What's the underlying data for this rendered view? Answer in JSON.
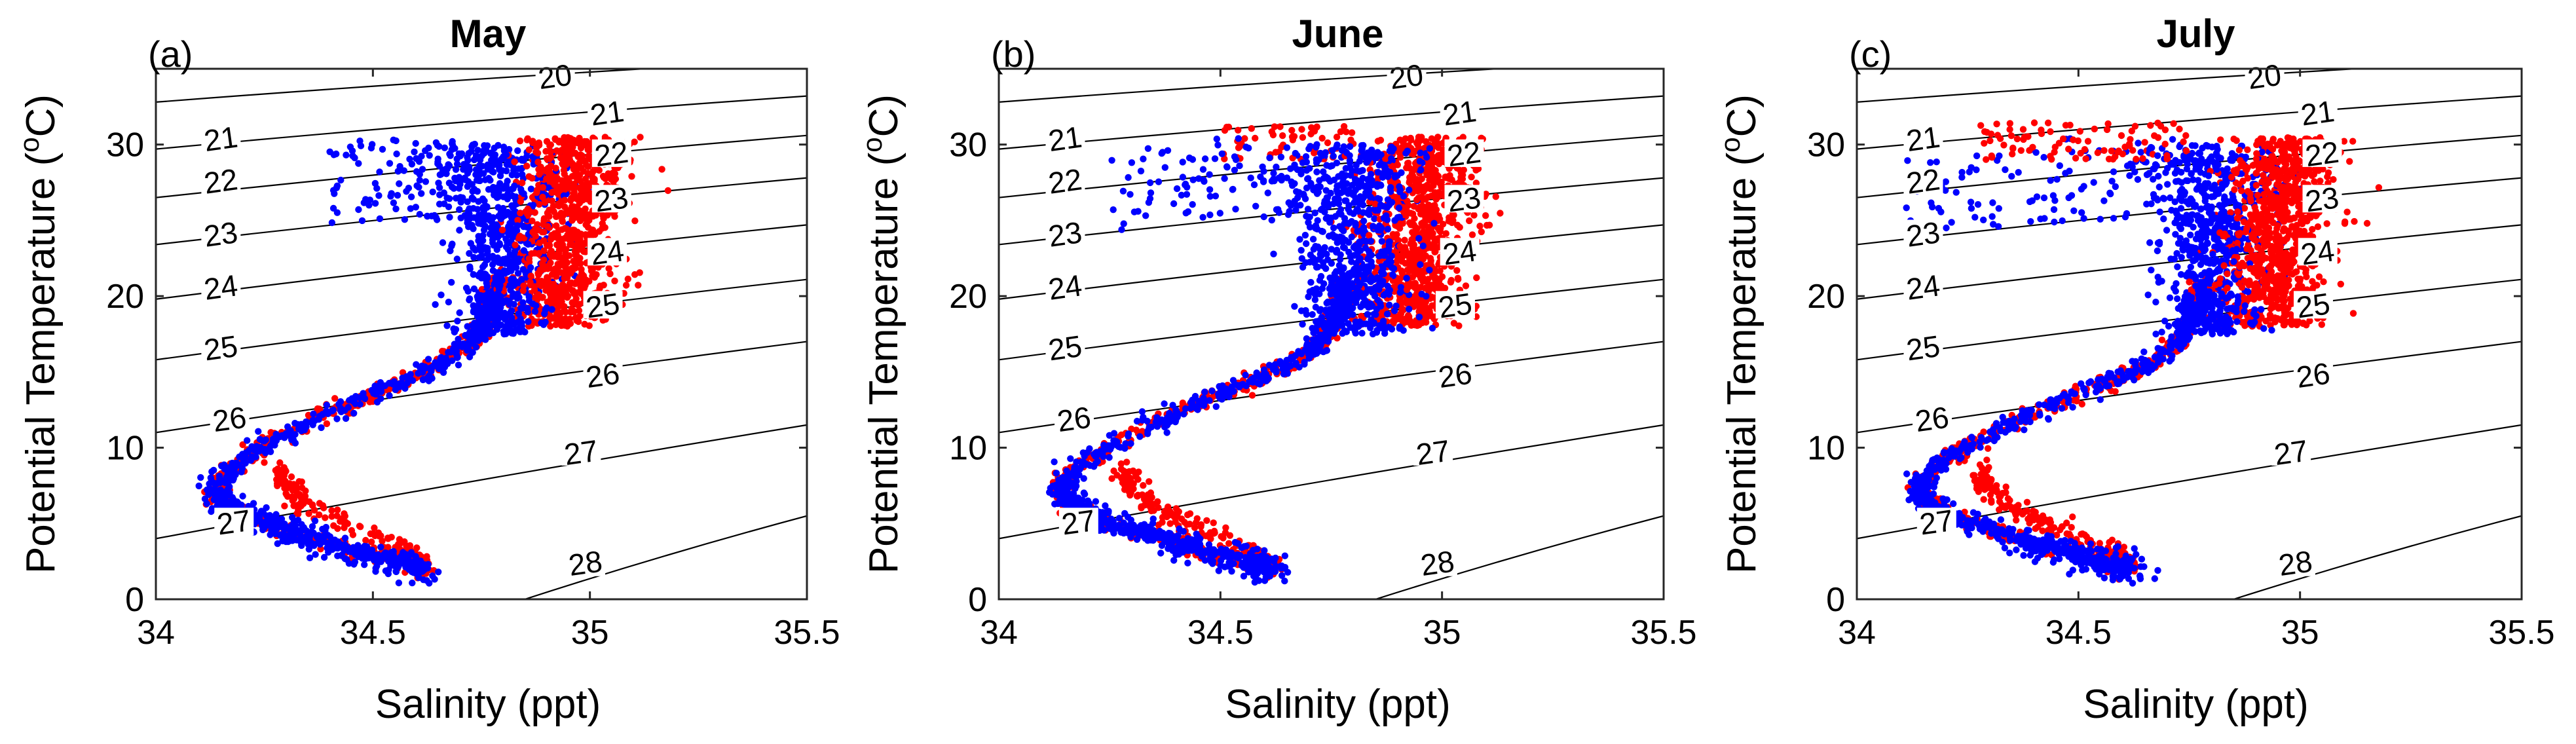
{
  "chart_data": [
    {
      "type": "scatter",
      "panel_letter": "(a)",
      "title": "May",
      "xlabel": "Salinity (ppt)",
      "ylabel": "Potential Temperature (oC)",
      "ylabel_parts": [
        "Potential Temperature (",
        "o",
        "C)"
      ],
      "xlim": [
        34,
        35.5
      ],
      "ylim": [
        0,
        35
      ],
      "xticks": [
        "34",
        "34.5",
        "35",
        "35.5"
      ],
      "yticks": [
        "0",
        "10",
        "20",
        "30"
      ],
      "series": [
        {
          "name": "red",
          "color": "#ff0000"
        },
        {
          "name": "blue",
          "color": "#0000ff"
        }
      ],
      "contour_labels": [
        "20",
        "21",
        "22",
        "23",
        "24",
        "25",
        "26",
        "27",
        "28"
      ]
    },
    {
      "type": "scatter",
      "panel_letter": "(b)",
      "title": "June",
      "xlabel": "Salinity (ppt)",
      "ylabel": "Potential Temperature (oC)",
      "ylabel_parts": [
        "Potential Temperature (",
        "o",
        "C)"
      ],
      "xlim": [
        34,
        35.5
      ],
      "ylim": [
        0,
        35
      ],
      "xticks": [
        "34",
        "34.5",
        "35",
        "35.5"
      ],
      "yticks": [
        "0",
        "10",
        "20",
        "30"
      ],
      "series": [
        {
          "name": "red",
          "color": "#ff0000"
        },
        {
          "name": "blue",
          "color": "#0000ff"
        }
      ],
      "contour_labels": [
        "20",
        "21",
        "22",
        "23",
        "24",
        "25",
        "26",
        "27",
        "28"
      ]
    },
    {
      "type": "scatter",
      "panel_letter": "(c)",
      "title": "July",
      "xlabel": "Salinity (ppt)",
      "ylabel": "Potential Temperature (oC)",
      "ylabel_parts": [
        "Potential Temperature (",
        "o",
        "C)"
      ],
      "xlim": [
        34,
        35.5
      ],
      "ylim": [
        0,
        35
      ],
      "xticks": [
        "34",
        "34.5",
        "35",
        "35.5"
      ],
      "yticks": [
        "0",
        "10",
        "20",
        "30"
      ],
      "series": [
        {
          "name": "red",
          "color": "#ff0000"
        },
        {
          "name": "blue",
          "color": "#0000ff"
        }
      ],
      "contour_labels": [
        "20",
        "21",
        "22",
        "23",
        "24",
        "25",
        "26",
        "27",
        "28"
      ]
    }
  ]
}
